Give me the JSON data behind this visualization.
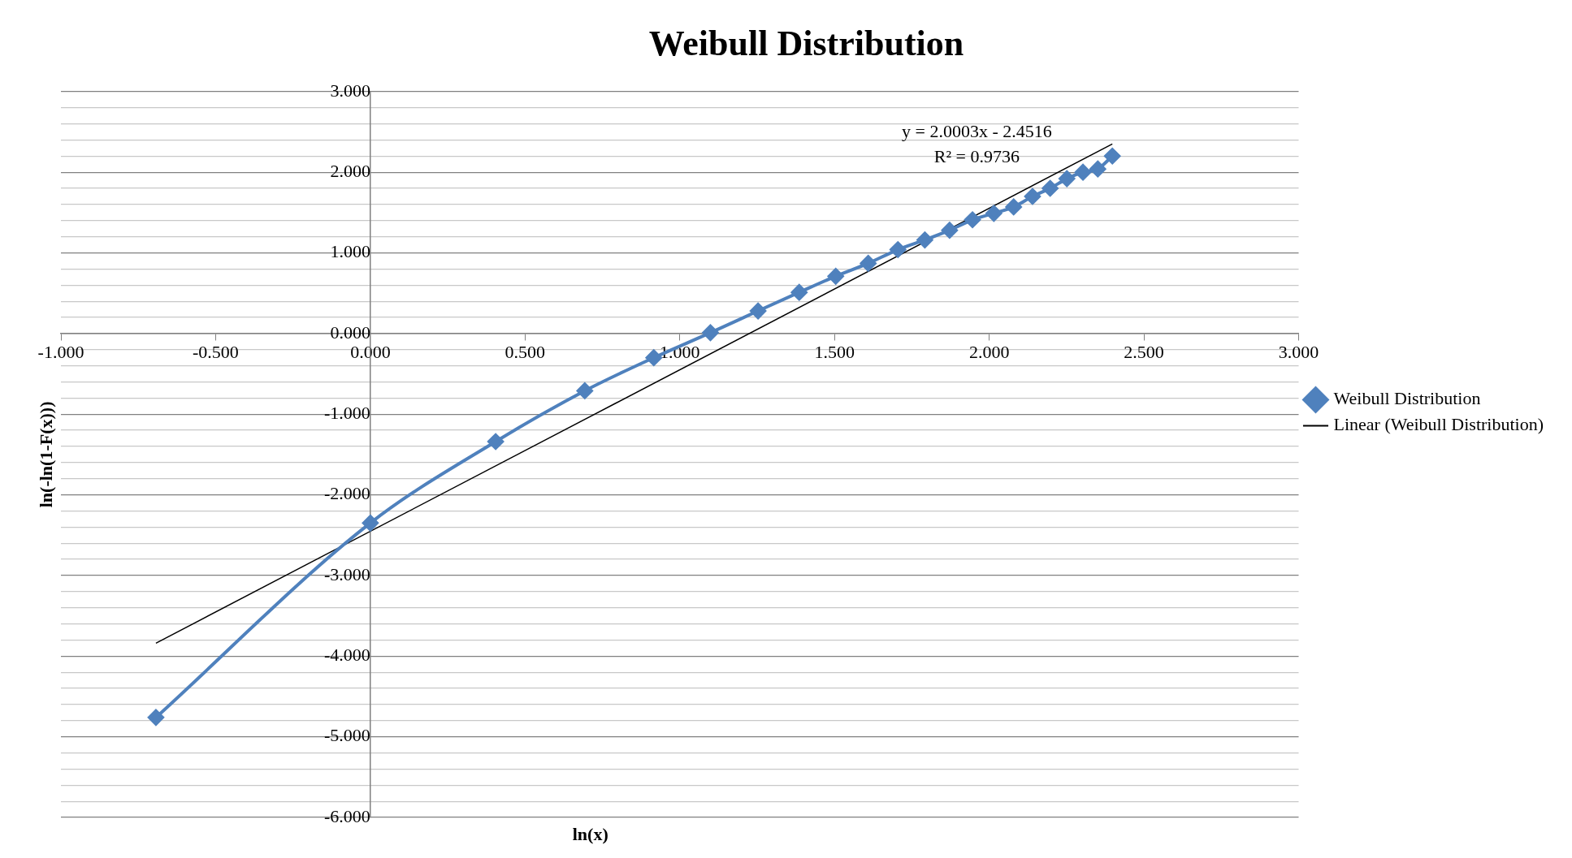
{
  "chart_data": {
    "type": "scatter",
    "title": "Weibull Distribution",
    "xlabel": "ln(x)",
    "ylabel": "ln(-ln(1-F(x)))",
    "xlim": [
      -1,
      3
    ],
    "ylim": [
      -6,
      3
    ],
    "xticks": [
      {
        "value": -1,
        "label": "-1.000"
      },
      {
        "value": -0.5,
        "label": "-0.500"
      },
      {
        "value": 0,
        "label": "0.000"
      },
      {
        "value": 0.5,
        "label": "0.500"
      },
      {
        "value": 1,
        "label": "1.000"
      },
      {
        "value": 1.5,
        "label": "1.500"
      },
      {
        "value": 2,
        "label": "2.000"
      },
      {
        "value": 2.5,
        "label": "2.500"
      },
      {
        "value": 3,
        "label": "3.000"
      }
    ],
    "yticks": [
      {
        "value": -6,
        "label": "-6.000"
      },
      {
        "value": -5.8,
        "label": null
      },
      {
        "value": -5.6,
        "label": null
      },
      {
        "value": -5.4,
        "label": null
      },
      {
        "value": -5.2,
        "label": null
      },
      {
        "value": -5,
        "label": "-5.000"
      },
      {
        "value": -4.8,
        "label": null
      },
      {
        "value": -4.6,
        "label": null
      },
      {
        "value": -4.4,
        "label": null
      },
      {
        "value": -4.2,
        "label": null
      },
      {
        "value": -4,
        "label": "-4.000"
      },
      {
        "value": -3.8,
        "label": null
      },
      {
        "value": -3.6,
        "label": null
      },
      {
        "value": -3.4,
        "label": null
      },
      {
        "value": -3.2,
        "label": null
      },
      {
        "value": -3,
        "label": "-3.000"
      },
      {
        "value": -2.8,
        "label": null
      },
      {
        "value": -2.6,
        "label": null
      },
      {
        "value": -2.4,
        "label": null
      },
      {
        "value": -2.2,
        "label": null
      },
      {
        "value": -2,
        "label": "-2.000"
      },
      {
        "value": -1.8,
        "label": null
      },
      {
        "value": -1.6,
        "label": null
      },
      {
        "value": -1.4,
        "label": null
      },
      {
        "value": -1.2,
        "label": null
      },
      {
        "value": -1,
        "label": "-1.000"
      },
      {
        "value": -0.8,
        "label": null
      },
      {
        "value": -0.6,
        "label": null
      },
      {
        "value": -0.4,
        "label": null
      },
      {
        "value": -0.2,
        "label": null
      },
      {
        "value": 0,
        "label": "0.000"
      },
      {
        "value": 0.2,
        "label": null
      },
      {
        "value": 0.4,
        "label": null
      },
      {
        "value": 0.6,
        "label": null
      },
      {
        "value": 0.8,
        "label": null
      },
      {
        "value": 1,
        "label": "1.000"
      },
      {
        "value": 1.2,
        "label": null
      },
      {
        "value": 1.4,
        "label": null
      },
      {
        "value": 1.6,
        "label": null
      },
      {
        "value": 1.8,
        "label": null
      },
      {
        "value": 2,
        "label": "2.000"
      },
      {
        "value": 2.2,
        "label": null
      },
      {
        "value": 2.4,
        "label": null
      },
      {
        "value": 2.6,
        "label": null
      },
      {
        "value": 2.8,
        "label": null
      },
      {
        "value": 3,
        "label": "3.000"
      }
    ],
    "grid": "y",
    "legend": "right",
    "series": [
      {
        "name": "Weibull Distribution",
        "type": "line",
        "color": "#4f81bd",
        "marker": "diamond",
        "x": [
          -0.693,
          0,
          0.405,
          0.693,
          0.916,
          1.099,
          1.253,
          1.386,
          1.504,
          1.609,
          1.705,
          1.792,
          1.872,
          1.946,
          2.015,
          2.079,
          2.14,
          2.197,
          2.251,
          2.303,
          2.351,
          2.398
        ],
        "values": [
          -4.76,
          -2.35,
          -1.34,
          -0.71,
          -0.3,
          0.01,
          0.28,
          0.51,
          0.71,
          0.87,
          1.04,
          1.16,
          1.28,
          1.41,
          1.49,
          1.57,
          1.7,
          1.8,
          1.92,
          2.0,
          2.04,
          2.2
        ]
      },
      {
        "name": "Linear (Weibull Distribution)",
        "type": "line",
        "color": "#000000",
        "marker": "none",
        "x": [
          -0.693,
          2.398
        ],
        "values": [
          -3.84,
          2.35
        ]
      }
    ],
    "annotations": [
      "y = 2.0003x - 2.4516",
      "R² = 0.9736"
    ]
  }
}
